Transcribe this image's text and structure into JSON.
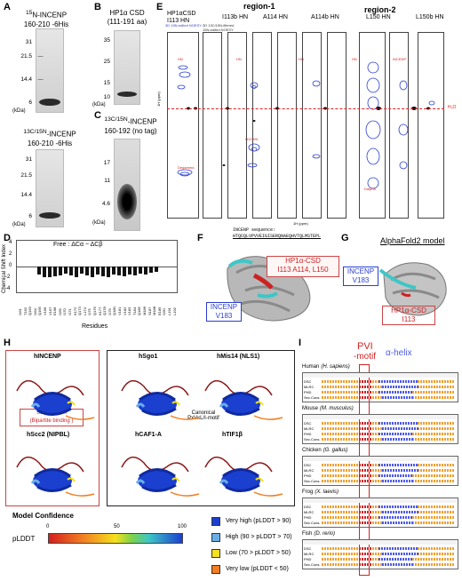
{
  "panels": {
    "A": {
      "letter": "A",
      "gel1_title": "15N-INCENP 160-210 -6His",
      "gel1_iso": "15",
      "gel1_title_rest": "N-INCENP",
      "gel1_sub": "160-210 -6His",
      "gel1_mw": [
        "31",
        "21.5",
        "14.4",
        "6"
      ],
      "gel1_kda": "(kDa)",
      "gel2_iso": "13C/15N",
      "gel2_title_rest": "-INCENP",
      "gel2_sub": "160-210 -6His",
      "gel2_mw": [
        "31",
        "21.5",
        "14.4",
        "6"
      ],
      "gel2_kda": "(kDa)"
    },
    "B": {
      "letter": "B",
      "title": "HP1α CSD",
      "sub": "(111-191 aa)",
      "mw": [
        "35",
        "25",
        "15",
        "10"
      ],
      "kda": "(kDa)"
    },
    "C": {
      "letter": "C",
      "iso": "13C/15N",
      "title_rest": "-INCENP",
      "sub": "160-192 (no tag)",
      "mw": [
        "17",
        "11",
        "4.6"
      ],
      "kda": "(kDa)"
    },
    "D": {
      "letter": "D",
      "legend": "Free : ΔCα − ΔCβ",
      "ylabel": "Chemical Shift Index",
      "xlabel": "Residues",
      "yticks": [
        "4",
        "2",
        "0",
        "-2",
        "-4"
      ],
      "residues": [
        "I161",
        "T162",
        "Q163",
        "I164",
        "Q165",
        "V166",
        "V167",
        "E168",
        "I169",
        "I170",
        "I171",
        "K172",
        "Q173",
        "L174",
        "I175",
        "Q176",
        "K177",
        "Q178",
        "I179",
        "Q180",
        "V181",
        "V182",
        "V183",
        "T184",
        "Q185",
        "M186",
        "S187",
        "M188",
        "E189",
        "I190",
        "L191",
        "L192"
      ]
    },
    "E": {
      "letter": "E",
      "region1": "region-1",
      "region2": "region-2",
      "col_titles": [
        "HP1αCSD I113 HN",
        "I113b HN",
        "A114 HN",
        "A114b HN",
        "L150 HN",
        "L150b HN"
      ],
      "legend_blue": "3D 15N-edited NOESY",
      "legend_black": "3D 13C/15N-filtered 15N-edited NOESY",
      "axis_label": "1H (ppm)",
      "h2o": "H₂O"
    },
    "F": {
      "letter": "F",
      "seq_label": "INCENP sequence:",
      "seq": "HTQCQLVPVVEIGISERQNAEQHVTQLMSTEPL",
      "box_title": "HP1α-CSD",
      "box_sub": "I113 A114, L150",
      "incenp": "INCENP",
      "incenp_res": "V183"
    },
    "G": {
      "letter": "G",
      "title": "AlphaFold2 model",
      "incenp": "INCENP",
      "incenp_res": "V183",
      "box_title": "HP1α-CSD",
      "box_sub": "I113"
    },
    "H": {
      "letter": "H",
      "left": [
        {
          "name": "hINCENP"
        },
        {
          "name": "hScc2 (NIPBL)"
        }
      ],
      "ssh_line1": "SSH-domain",
      "ssh_line2": "(Bipartite binding )",
      "right": [
        {
          "name": "hSgo1"
        },
        {
          "name": "hMis14 (NLS1)"
        },
        {
          "name": "hCAF1-A"
        },
        {
          "name": "hTIF1β"
        }
      ],
      "canonical_line1": "Canonical",
      "canonical_line2": "PxVxL/I-motif",
      "model_conf_title": "Model Confidence",
      "plddt": "pLDDT",
      "scale_ticks": [
        "0",
        "50",
        "100"
      ],
      "conf_items": [
        {
          "label": "Very high (pLDDT > 90)",
          "color": "#1b3fcf"
        },
        {
          "label": "High (90 > pLDDT > 70)",
          "color": "#6aaee8"
        },
        {
          "label": "Low (70 > pLDDT > 50)",
          "color": "#f5e11d"
        },
        {
          "label": "Very low (pLDDT < 50)",
          "color": "#f27d22"
        }
      ]
    },
    "I": {
      "letter": "I",
      "pvi": "PVI",
      "motif": "-motif",
      "alpha": "α-helix",
      "species": [
        {
          "common": "Human",
          "latin": "(H. sapiens)"
        },
        {
          "common": "Mouse",
          "latin": "(M. musculus)"
        },
        {
          "common": "Chicken",
          "latin": "(G. gallus)"
        },
        {
          "common": "Frog",
          "latin": "(X. laevis)"
        },
        {
          "common": "Fish",
          "latin": "(D. rerio)"
        }
      ],
      "rows": [
        "DSC",
        "MLRC",
        "PHD",
        "Sec.Cons."
      ]
    }
  },
  "colors": {
    "red": "#d32323",
    "blue": "#2a3fd0",
    "helix_blue": "#4e5be8"
  }
}
